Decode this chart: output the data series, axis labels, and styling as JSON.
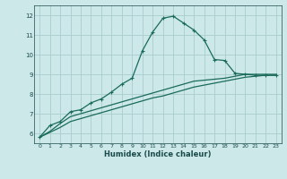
{
  "xlabel": "Humidex (Indice chaleur)",
  "bg_color": "#cce8e8",
  "grid_color": "#aacccc",
  "line_color": "#1a6b5a",
  "xlim": [
    -0.5,
    23.5
  ],
  "ylim": [
    5.5,
    12.5
  ],
  "xticks": [
    0,
    1,
    2,
    3,
    4,
    5,
    6,
    7,
    8,
    9,
    10,
    11,
    12,
    13,
    14,
    15,
    16,
    17,
    18,
    19,
    20,
    21,
    22,
    23
  ],
  "yticks": [
    6,
    7,
    8,
    9,
    10,
    11,
    12
  ],
  "curve1_x": [
    0,
    1,
    2,
    3,
    4,
    5,
    6,
    7,
    8,
    9,
    10,
    11,
    12,
    13,
    14,
    15,
    16,
    17,
    18,
    19,
    20,
    21,
    22,
    23
  ],
  "curve1_y": [
    5.8,
    6.4,
    6.6,
    7.1,
    7.2,
    7.55,
    7.75,
    8.1,
    8.5,
    8.8,
    10.2,
    11.15,
    11.85,
    11.95,
    11.6,
    11.25,
    10.75,
    9.75,
    9.7,
    9.05,
    9.0,
    8.95,
    8.95,
    8.95
  ],
  "curve2_x": [
    0,
    1,
    2,
    3,
    4,
    5,
    6,
    7,
    8,
    9,
    10,
    11,
    12,
    13,
    14,
    15,
    16,
    17,
    18,
    19,
    20,
    21,
    22,
    23
  ],
  "curve2_y": [
    5.8,
    6.1,
    6.5,
    6.85,
    7.0,
    7.15,
    7.3,
    7.45,
    7.6,
    7.75,
    7.9,
    8.05,
    8.2,
    8.35,
    8.5,
    8.65,
    8.7,
    8.75,
    8.8,
    8.9,
    9.0,
    9.0,
    9.0,
    9.0
  ],
  "curve3_x": [
    0,
    1,
    2,
    3,
    4,
    5,
    6,
    7,
    8,
    9,
    10,
    11,
    12,
    13,
    14,
    15,
    16,
    17,
    18,
    19,
    20,
    21,
    22,
    23
  ],
  "curve3_y": [
    5.8,
    6.05,
    6.3,
    6.6,
    6.75,
    6.9,
    7.05,
    7.2,
    7.35,
    7.5,
    7.65,
    7.8,
    7.9,
    8.05,
    8.2,
    8.35,
    8.45,
    8.55,
    8.65,
    8.75,
    8.85,
    8.9,
    8.95,
    8.95
  ]
}
